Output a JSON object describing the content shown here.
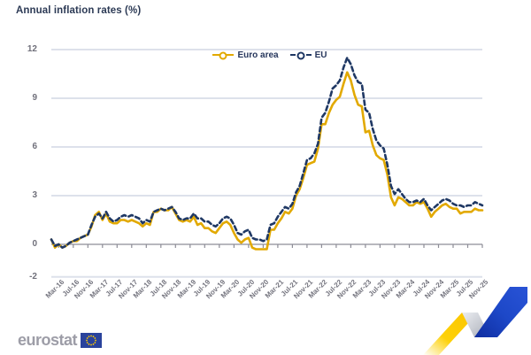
{
  "title": "Annual inflation rates (%)",
  "legend": {
    "items": [
      {
        "label": "Euro area",
        "color": "#e2a900",
        "line_style": "solid",
        "marker": "circle-donut"
      },
      {
        "label": "EU",
        "color": "#1f3864",
        "line_style": "dashed",
        "marker": "circle-donut"
      }
    ],
    "position": "top-center"
  },
  "logo": {
    "text": "eurostat"
  },
  "colors": {
    "title": "#2c3a55",
    "euro_area_line": "#e2a900",
    "eu_line": "#1f3864",
    "gridline": "#dde1eb",
    "zero_axis": "#8d8d97",
    "y_labels": "#70707b",
    "x_labels": "#75757f",
    "logo_text": "#9d9da7",
    "flag_blue": "#2a439c",
    "star_yellow": "#ffcc00",
    "ribbon_yellow": "#fcc400",
    "ribbon_blue": "#1d48c8",
    "ribbon_silver": "#a8acb6"
  },
  "chart_data": {
    "type": "line",
    "title": "Annual inflation rates (%)",
    "xlabel": "",
    "ylabel": "",
    "ylim": [
      -2,
      12
    ],
    "y_ticks": [
      12,
      9,
      6,
      3,
      0,
      -2
    ],
    "grid": true,
    "legend_position": "top-center",
    "x": [
      "Jan-16",
      "Feb-16",
      "Mar-16",
      "Apr-16",
      "May-16",
      "Jun-16",
      "Jul-16",
      "Aug-16",
      "Sep-16",
      "Oct-16",
      "Nov-16",
      "Dec-16",
      "Jan-17",
      "Feb-17",
      "Mar-17",
      "Apr-17",
      "May-17",
      "Jun-17",
      "Jul-17",
      "Aug-17",
      "Sep-17",
      "Oct-17",
      "Nov-17",
      "Dec-17",
      "Jan-18",
      "Feb-18",
      "Mar-18",
      "Apr-18",
      "May-18",
      "Jun-18",
      "Jul-18",
      "Aug-18",
      "Sep-18",
      "Oct-18",
      "Nov-18",
      "Dec-18",
      "Jan-19",
      "Feb-19",
      "Mar-19",
      "Apr-19",
      "May-19",
      "Jun-19",
      "Jul-19",
      "Aug-19",
      "Sep-19",
      "Oct-19",
      "Nov-19",
      "Dec-19",
      "Jan-20",
      "Feb-20",
      "Mar-20",
      "Apr-20",
      "May-20",
      "Jun-20",
      "Jul-20",
      "Aug-20",
      "Sep-20",
      "Oct-20",
      "Nov-20",
      "Dec-20",
      "Jan-21",
      "Feb-21",
      "Mar-21",
      "Apr-21",
      "May-21",
      "Jun-21",
      "Jul-21",
      "Aug-21",
      "Sep-21",
      "Oct-21",
      "Nov-21",
      "Dec-21",
      "Jan-22",
      "Feb-22",
      "Mar-22",
      "Apr-22",
      "May-22",
      "Jun-22",
      "Jul-22",
      "Aug-22",
      "Sep-22",
      "Oct-22",
      "Nov-22",
      "Dec-22",
      "Jan-23",
      "Feb-23",
      "Mar-23",
      "Apr-23",
      "May-23",
      "Jun-23",
      "Jul-23",
      "Aug-23",
      "Sep-23",
      "Oct-23",
      "Nov-23",
      "Dec-23",
      "Jan-24",
      "Feb-24",
      "Mar-24",
      "Apr-24",
      "May-24",
      "Jun-24",
      "Jul-24",
      "Aug-24",
      "Sep-24",
      "Oct-24",
      "Nov-24",
      "Dec-24",
      "Jan-25",
      "Feb-25",
      "Mar-25",
      "Apr-25",
      "May-25",
      "Jun-25",
      "Jul-25",
      "Aug-25",
      "Sep-25",
      "Oct-25",
      "Nov-25"
    ],
    "x_tick_labels": [
      "Mar-16",
      "Jul-16",
      "Nov-16",
      "Mar-17",
      "Jul-17",
      "Nov-17",
      "Mar-18",
      "Jul-18",
      "Nov-18",
      "Mar-19",
      "Jul-19",
      "Nov-19",
      "Mar-20",
      "Jul-20",
      "Nov-20",
      "Mar-21",
      "Jul-21",
      "Nov-21",
      "Mar-22",
      "Jul-22",
      "Nov-22",
      "Mar-23",
      "Jul-23",
      "Nov-23",
      "Mar-24",
      "Jul-24",
      "Nov-24",
      "Mar-25",
      "Jul-25",
      "Nov-25"
    ],
    "series": [
      {
        "name": "Euro area",
        "color": "#e2a900",
        "style": "solid",
        "values": [
          0.3,
          -0.2,
          0.0,
          -0.2,
          -0.1,
          0.1,
          0.2,
          0.2,
          0.4,
          0.5,
          0.6,
          1.1,
          1.8,
          2.0,
          1.5,
          1.9,
          1.4,
          1.3,
          1.3,
          1.5,
          1.5,
          1.4,
          1.5,
          1.4,
          1.3,
          1.1,
          1.3,
          1.2,
          2.0,
          2.0,
          2.2,
          2.1,
          2.1,
          2.3,
          1.9,
          1.5,
          1.4,
          1.5,
          1.4,
          1.7,
          1.2,
          1.3,
          1.0,
          1.0,
          0.8,
          0.7,
          1.0,
          1.3,
          1.4,
          1.2,
          0.7,
          0.3,
          0.1,
          0.3,
          0.4,
          -0.2,
          -0.3,
          -0.3,
          -0.3,
          -0.3,
          0.9,
          0.9,
          1.3,
          1.6,
          2.0,
          1.9,
          2.2,
          3.0,
          3.4,
          4.1,
          4.9,
          5.0,
          5.1,
          5.9,
          7.4,
          7.4,
          8.1,
          8.6,
          8.9,
          9.1,
          9.9,
          10.6,
          10.1,
          9.2,
          8.6,
          8.5,
          6.9,
          7.0,
          6.1,
          5.5,
          5.3,
          5.2,
          4.3,
          2.9,
          2.4,
          2.9,
          2.8,
          2.6,
          2.4,
          2.4,
          2.6,
          2.5,
          2.6,
          2.2,
          1.7,
          2.0,
          2.2,
          2.4,
          2.5,
          2.3,
          2.2,
          2.2,
          1.9,
          2.0,
          2.0,
          2.0,
          2.2,
          2.1,
          2.1
        ]
      },
      {
        "name": "EU",
        "color": "#1f3864",
        "style": "dashed",
        "values": [
          0.3,
          -0.1,
          0.0,
          -0.2,
          -0.1,
          0.1,
          0.2,
          0.3,
          0.4,
          0.5,
          0.6,
          1.2,
          1.7,
          1.9,
          1.6,
          2.0,
          1.6,
          1.4,
          1.5,
          1.7,
          1.8,
          1.7,
          1.8,
          1.7,
          1.6,
          1.3,
          1.5,
          1.4,
          2.0,
          2.1,
          2.2,
          2.1,
          2.2,
          2.3,
          2.0,
          1.6,
          1.5,
          1.6,
          1.6,
          1.9,
          1.6,
          1.6,
          1.4,
          1.4,
          1.2,
          1.1,
          1.3,
          1.6,
          1.7,
          1.6,
          1.2,
          0.7,
          0.6,
          0.8,
          0.9,
          0.4,
          0.3,
          0.3,
          0.2,
          0.3,
          1.2,
          1.3,
          1.7,
          2.0,
          2.3,
          2.2,
          2.5,
          3.2,
          3.6,
          4.4,
          5.2,
          5.3,
          5.6,
          6.2,
          7.8,
          8.1,
          8.8,
          9.6,
          9.8,
          10.1,
          10.9,
          11.5,
          11.1,
          10.4,
          10.0,
          9.9,
          8.3,
          8.1,
          7.1,
          6.4,
          6.1,
          5.9,
          4.9,
          3.6,
          3.1,
          3.4,
          3.1,
          2.8,
          2.6,
          2.6,
          2.7,
          2.6,
          2.8,
          2.4,
          2.1,
          2.3,
          2.5,
          2.7,
          2.8,
          2.7,
          2.5,
          2.4,
          2.4,
          2.3,
          2.4,
          2.4,
          2.6,
          2.5,
          2.4
        ]
      }
    ]
  }
}
